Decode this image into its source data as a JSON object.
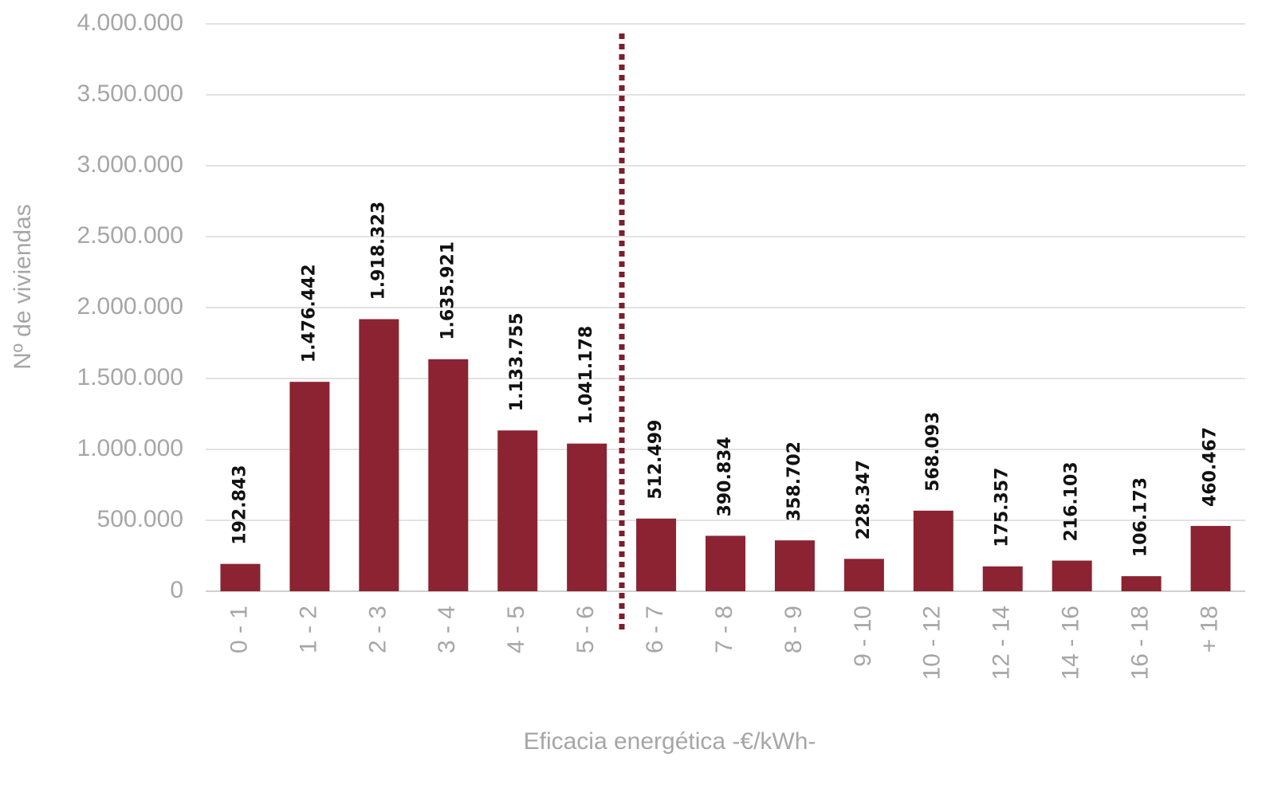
{
  "chart_data": {
    "type": "bar",
    "y_label": "Nº de viviendas",
    "x_label": "Eficacia energética -€/kWh-",
    "categories": [
      "0 - 1",
      "1 - 2",
      "2 - 3",
      "3 - 4",
      "4 - 5",
      "5 - 6",
      "6 - 7",
      "7 - 8",
      "8 - 9",
      "9 - 10",
      "10 - 12",
      "12 - 14",
      "14 - 16",
      "16 - 18",
      "+ 18"
    ],
    "values": [
      192843,
      1476442,
      1918323,
      1635921,
      1133755,
      1041178,
      512499,
      390834,
      358702,
      228347,
      568093,
      175357,
      216103,
      106173,
      460467
    ],
    "value_labels": [
      "192.843",
      "1.476.442",
      "1.918.323",
      "1.635.921",
      "1.133.755",
      "1.041.178",
      "512.499",
      "390.834",
      "358.702",
      "228.347",
      "568.093",
      "175.357",
      "216.103",
      "106.173",
      "460.467"
    ],
    "color": "#8b2332",
    "ylim": [
      0,
      4000000
    ],
    "yticks": [
      0,
      {
        "value": 500000,
        "label": "500.000"
      },
      {
        "value": 1000000,
        "label": "1.000.000"
      },
      {
        "value": 1500000,
        "label": "1.500.000"
      },
      {
        "value": 2000000,
        "label": "2.000.000"
      },
      {
        "value": 2500000,
        "label": "2.500.000"
      },
      {
        "value": 3000000,
        "label": "3.000.000"
      },
      {
        "value": 3500000,
        "label": "3.500.000"
      },
      {
        "value": 4000000,
        "label": "4.000.000"
      }
    ],
    "grid": true
  }
}
